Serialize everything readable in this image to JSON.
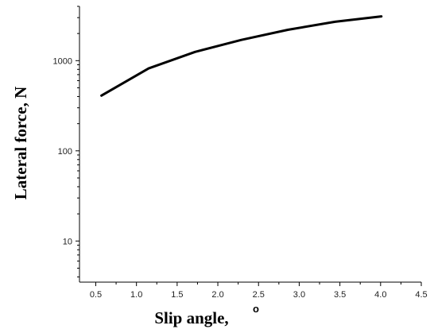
{
  "chart_data": {
    "type": "line",
    "title": "",
    "xlabel": "Slip angle,",
    "xlabel_superscript": "o",
    "ylabel": "Lateral force, N",
    "xlim": [
      0.3,
      4.5
    ],
    "ylim": [
      3.5,
      4000
    ],
    "yscale": "log",
    "grid": false,
    "x_ticks": [
      0.5,
      1.0,
      1.5,
      2.0,
      2.5,
      3.0,
      3.5,
      4.0,
      4.5
    ],
    "x_tick_labels": [
      "0.5",
      "1.0",
      "1.5",
      "2.0",
      "2.5",
      "3.0",
      "3.5",
      "4.0",
      "4.5"
    ],
    "y_ticks": [
      10,
      100,
      1000
    ],
    "y_tick_labels": [
      "10",
      "100",
      "1000"
    ],
    "series": [
      {
        "x": [
          0.57,
          1.15,
          1.72,
          2.29,
          2.86,
          3.44,
          4.01
        ],
        "y": [
          410,
          820,
          1250,
          1700,
          2200,
          2700,
          3100
        ]
      }
    ],
    "line_color": "#000000"
  }
}
